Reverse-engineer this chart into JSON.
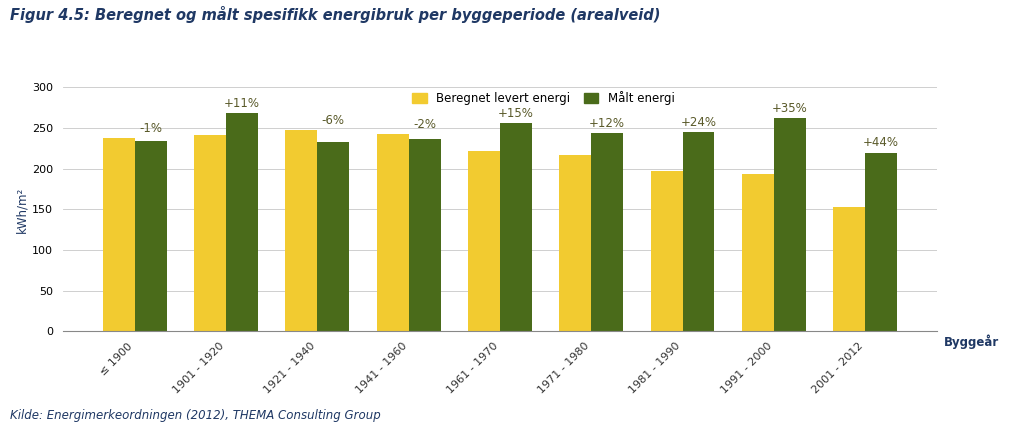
{
  "title": "Figur 4.5: Beregnet og målt spesifikk energibruk per byggeperiode (arealveid)",
  "categories": [
    "≤ 1900",
    "1901 - 1920",
    "1921 - 1940",
    "1941 - 1960",
    "1961 - 1970",
    "1971 - 1980",
    "1981 - 1990",
    "1991 - 2000",
    "2001 - 2012"
  ],
  "beregnet": [
    238,
    241,
    248,
    243,
    222,
    217,
    197,
    194,
    153
  ],
  "malt": [
    234,
    268,
    233,
    237,
    256,
    244,
    245,
    262,
    220
  ],
  "percentages": [
    "-1%",
    "+11%",
    "-6%",
    "-2%",
    "+15%",
    "+12%",
    "+24%",
    "+35%",
    "+44%"
  ],
  "color_beregnet": "#F2CB30",
  "color_malt": "#4A6B1A",
  "ylabel": "kWh/m²",
  "xlabel": "Byggeår",
  "legend_beregnet": "Beregnet levert energi",
  "legend_malt": "Målt energi",
  "ylim": [
    0,
    300
  ],
  "yticks": [
    0,
    50,
    100,
    150,
    200,
    250,
    300
  ],
  "caption": "Kilde: Energimerkeordningen (2012), THEMA Consulting Group",
  "title_color": "#1F3864",
  "caption_color": "#1F3864",
  "axis_label_color": "#1F3864",
  "pct_color": "#5A5A2A",
  "title_fontsize": 10.5,
  "axis_fontsize": 8.5,
  "tick_fontsize": 8,
  "label_fontsize": 8.5,
  "caption_fontsize": 8.5
}
